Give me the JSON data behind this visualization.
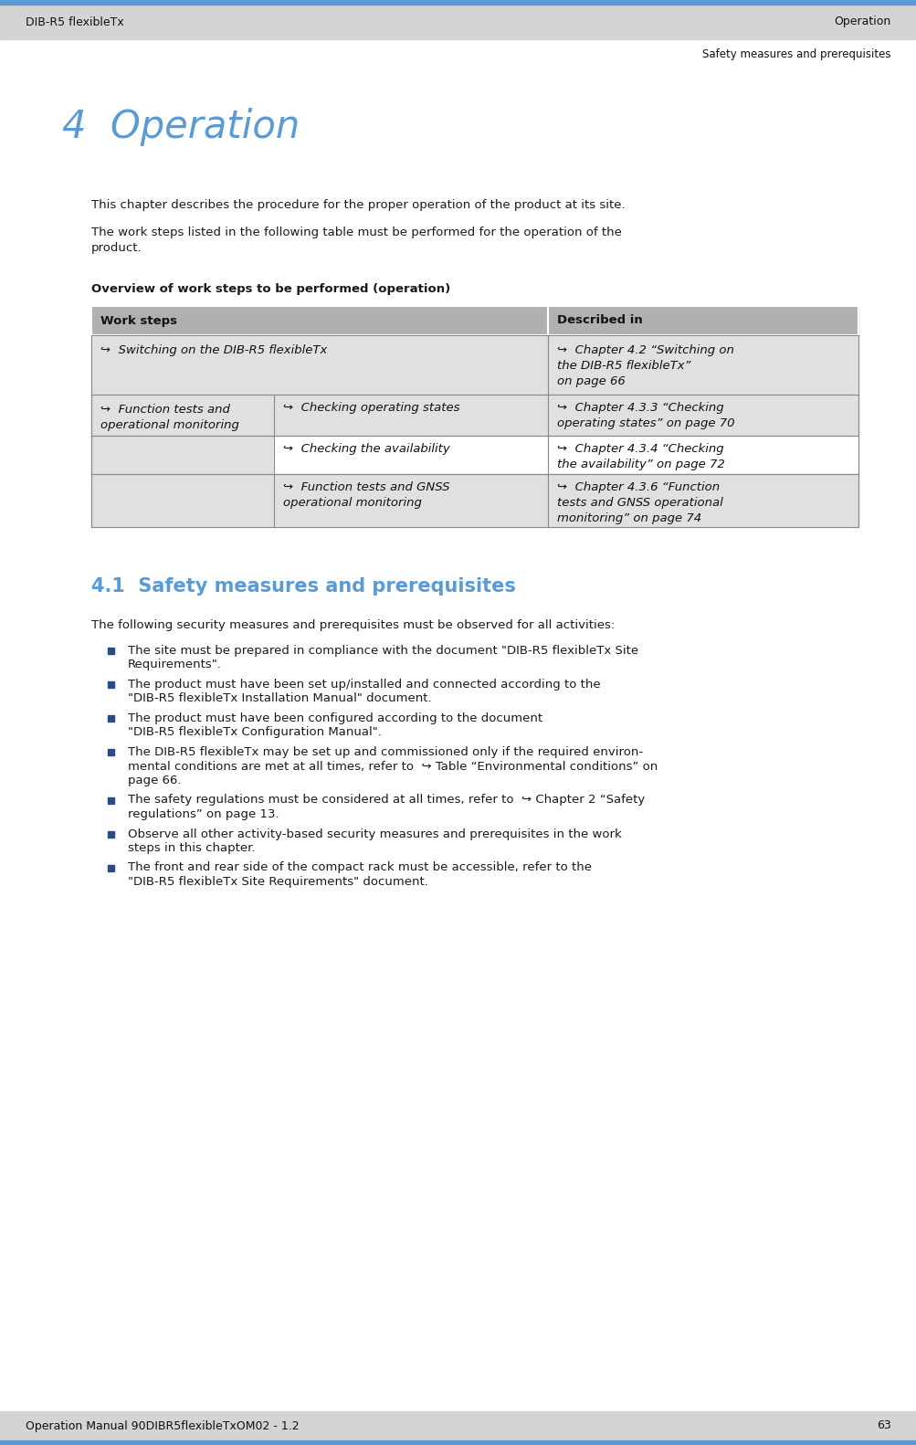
{
  "header_bg": "#d4d4d4",
  "header_top_line": "#5b9bd5",
  "header_left_text": "DIB-R5 flexibleTx",
  "header_right_text": "Operation",
  "header_sub_right": "Safety measures and prerequisites",
  "footer_bg": "#d4d4d4",
  "footer_bottom_line": "#5b9bd5",
  "footer_left_text": "Operation Manual 90DIBR5flexibleTxOM02 - 1.2",
  "footer_right_text": "63",
  "page_bg": "#ffffff",
  "chapter_title": "4  Operation",
  "chapter_title_color": "#5b9bd5",
  "body_text_color": "#1a1a1a",
  "para1": "This chapter describes the procedure for the proper operation of the product at its site.",
  "para2": "The work steps listed in the following table must be performed for the operation of the\nproduct.",
  "table_title": "Overview of work steps to be performed (operation)",
  "table_header_bg": "#b0b0b0",
  "table_row_bg_light": "#e0e0e0",
  "table_row_bg_white": "#ffffff",
  "table_border_color": "#888888",
  "table_col1_header": "Work steps",
  "table_col2_header": "Described in",
  "section41_title": "4.1  Safety measures and prerequisites",
  "section41_color": "#5b9bd5",
  "section41_para": "The following security measures and prerequisites must be observed for all activities:",
  "bullet_color": "#1a1a7a",
  "bullets": [
    [
      "The site must be prepared in compliance with the document \"DIB-R5 flexibleTx Site",
      "Requirements\"."
    ],
    [
      "The product must have been set up/installed and connected according to the",
      "\"DIB-R5 flexibleTx Installation Manual\" document."
    ],
    [
      "The product must have been configured according to the document",
      "\"DIB-R5 flexibleTx Configuration Manual\"."
    ],
    [
      "The DIB-R5 flexibleTx may be set up and commissioned only if the required environ-",
      "mental conditions are met at all times, refer to  ↪ Table “Environmental conditions” on",
      "page 66."
    ],
    [
      "The safety regulations must be considered at all times, refer to  ↪ Chapter 2 “Safety",
      "regulations” on page 13."
    ],
    [
      "Observe all other activity-based security measures and prerequisites in the work",
      "steps in this chapter."
    ],
    [
      "The front and rear side of the compact rack must be accessible, refer to the",
      "\"DIB-R5 flexibleTx Site Requirements\" document."
    ]
  ]
}
